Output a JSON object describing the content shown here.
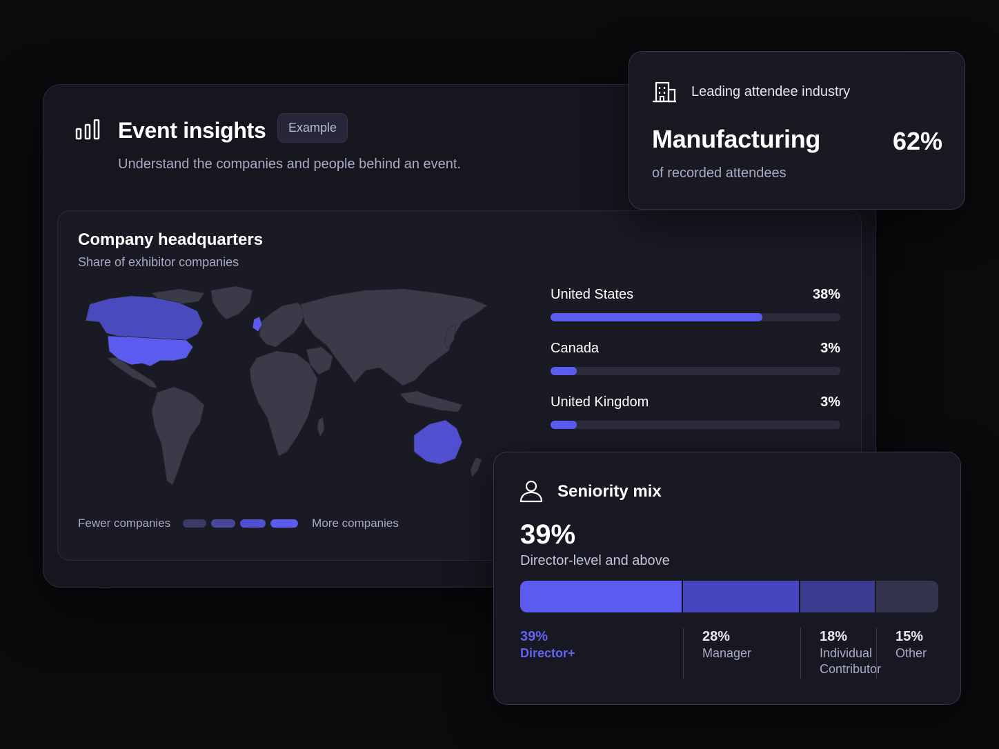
{
  "insights": {
    "title": "Event insights",
    "badge": "Example",
    "subtitle": "Understand the companies and people behind an event.",
    "icon": "bar-chart-icon"
  },
  "headquarters": {
    "title": "Company headquarters",
    "subtitle": "Share of exhibitor companies",
    "legend": {
      "fewer_label": "Fewer companies",
      "more_label": "More companies",
      "swatch_colors": [
        "#3a3a62",
        "#48489a",
        "#5050d0",
        "#5b5bf0"
      ]
    },
    "countries": [
      {
        "name": "United States",
        "pct": "38%",
        "value": 38
      },
      {
        "name": "Canada",
        "pct": "3%",
        "value": 3
      },
      {
        "name": "United Kingdom",
        "pct": "3%",
        "value": 3
      }
    ],
    "map_colors": {
      "land": "#3a3a48",
      "highlight_strong": "#5b5bf0",
      "highlight_medium": "#4f4fd8",
      "highlight_light": "#4a4abf"
    }
  },
  "industry": {
    "label": "Leading attendee industry",
    "name": "Manufacturing",
    "pct": "62%",
    "sub": "of recorded attendees",
    "icon": "building-icon"
  },
  "seniority": {
    "title": "Seniority mix",
    "big_pct": "39%",
    "sub": "Director-level and above",
    "icon": "person-icon",
    "segments": [
      {
        "pct": "39%",
        "label": "Director+",
        "value": 39,
        "color": "#5b5bf0"
      },
      {
        "pct": "28%",
        "label": "Manager",
        "value": 28,
        "color": "#4646c0"
      },
      {
        "pct": "18%",
        "label": "Individual Contributor",
        "value": 18,
        "color": "#3a3a8e"
      },
      {
        "pct": "15%",
        "label": "Other",
        "value": 15,
        "color": "#34344f"
      }
    ]
  },
  "colors": {
    "accent": "#5b5bf0",
    "background": "#0b0b0e",
    "card": "#16161f"
  }
}
